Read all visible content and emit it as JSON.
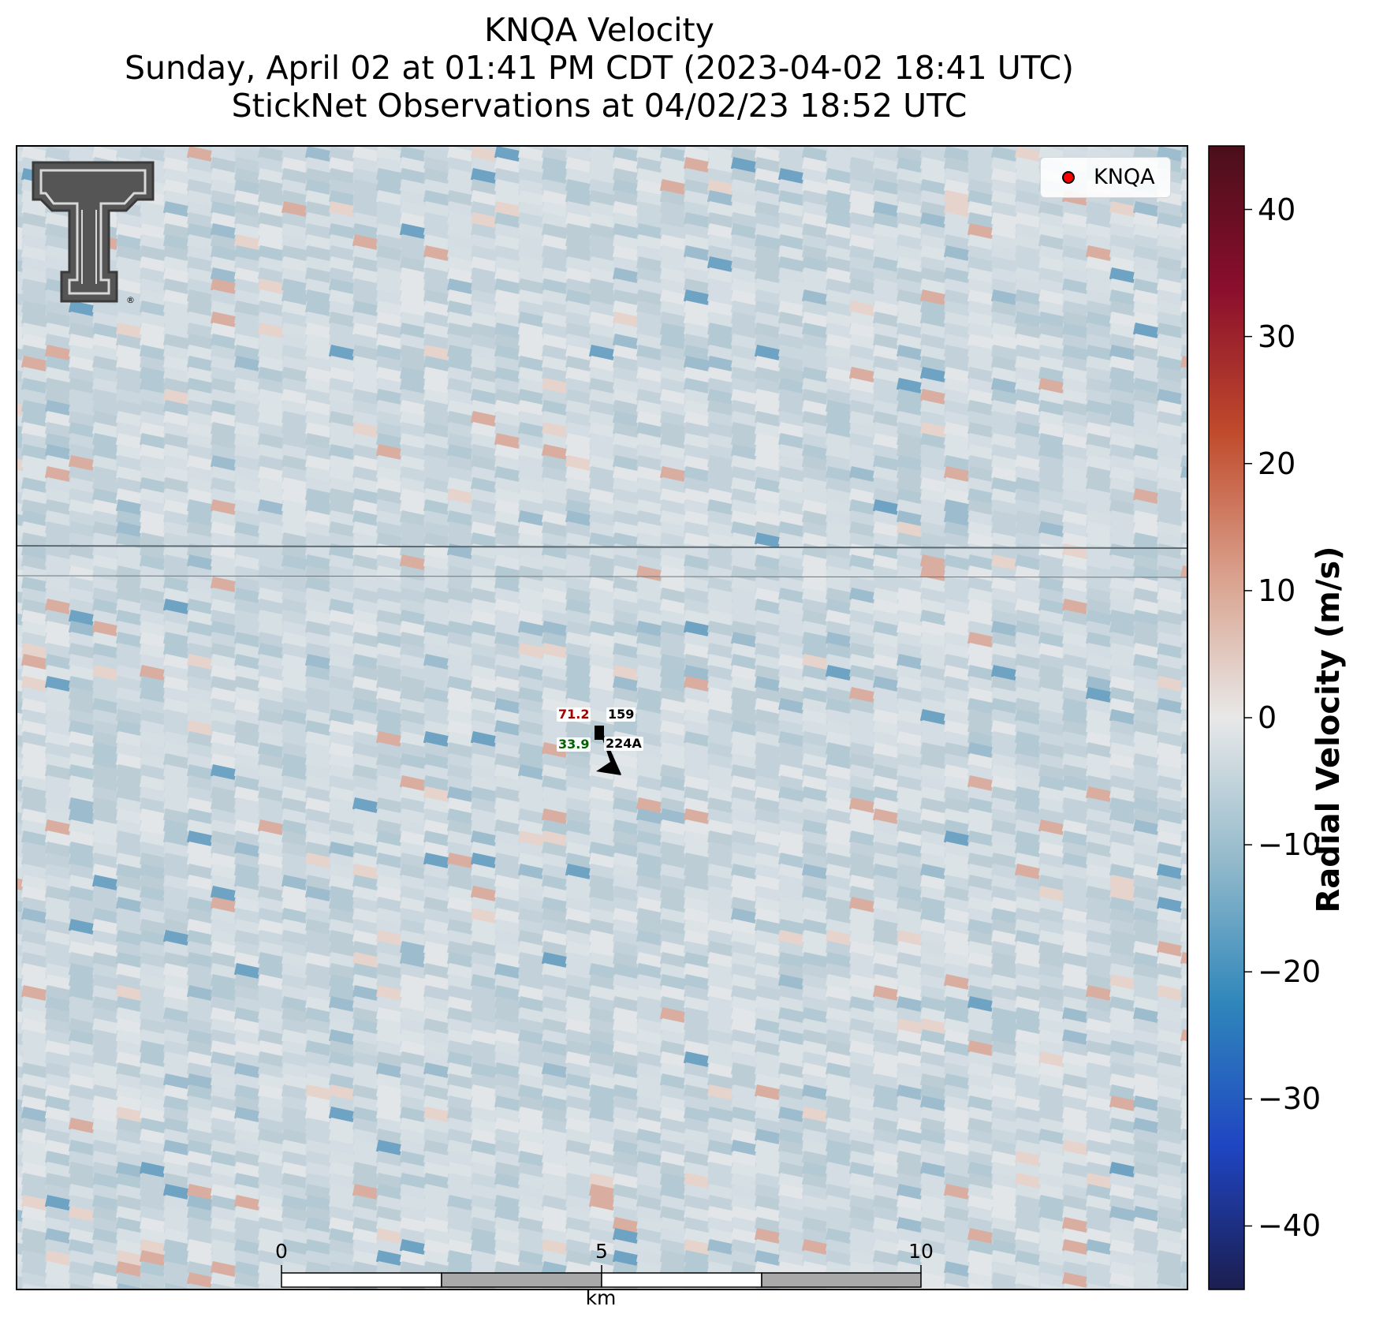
{
  "title": {
    "line1": "KNQA Velocity",
    "line2": "Sunday, April 02 at 01:41 PM CDT (2023-04-02 18:41 UTC)",
    "line3": "StickNet Observations at 04/02/23 18:52 UTC"
  },
  "legend": {
    "label": "KNQA",
    "marker_color": "#ff0000"
  },
  "colorbar": {
    "label": "Radial Velocity (m/s)",
    "range": [
      -45,
      45
    ],
    "ticks": [
      "40",
      "30",
      "20",
      "10",
      "0",
      "−10",
      "−20",
      "−30",
      "−40"
    ],
    "colormap": [
      "#1b1e4f",
      "#1f45c2",
      "#2f86bb",
      "#93bacb",
      "#e8e8e8",
      "#d9a08c",
      "#c04a2b",
      "#8a0e2d",
      "#4a0f1a"
    ]
  },
  "scale_bar": {
    "labels": [
      "0",
      "5",
      "10"
    ],
    "unit": "km"
  },
  "station": {
    "temperature": "71.2",
    "pressure_code": "159",
    "dewpoint": "33.9",
    "id": "224A",
    "temperature_color": "#a40000",
    "dewpoint_color": "#006400"
  },
  "logo": {
    "name": "Texas Tech Double T logo",
    "mark": "®"
  }
}
